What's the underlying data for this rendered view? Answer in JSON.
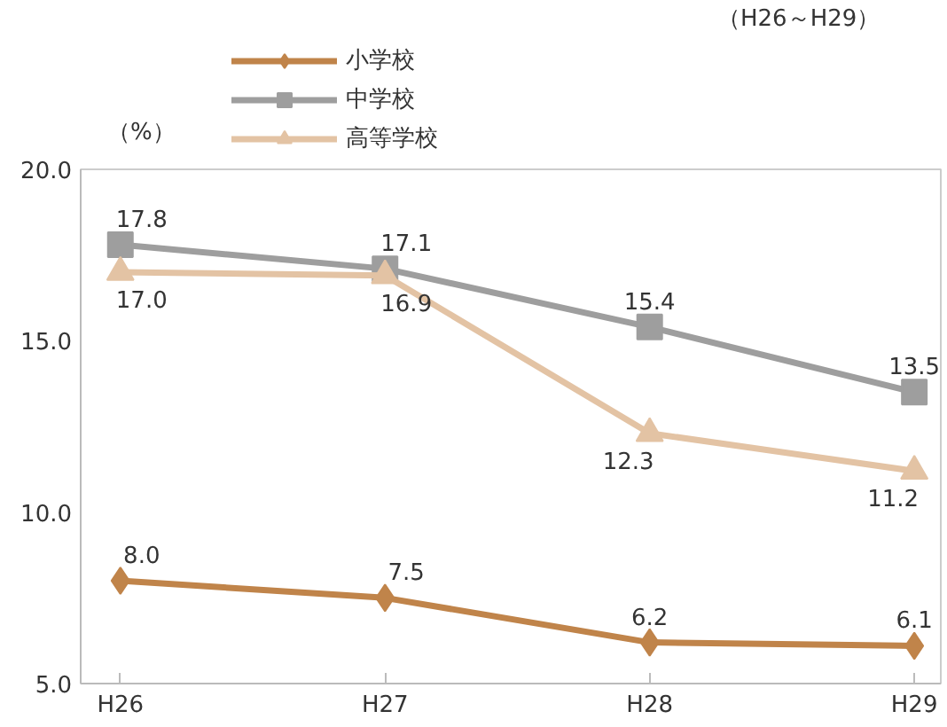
{
  "chart_data": {
    "type": "line",
    "ylabel": "（%）",
    "annotations": [
      "（H26～H29）"
    ],
    "categories": [
      "H26",
      "H27",
      "H28",
      "H29"
    ],
    "ylim": [
      5,
      20
    ],
    "yticks": [
      {
        "value": 5,
        "label": "5.0"
      },
      {
        "value": 10,
        "label": "10.0"
      },
      {
        "value": 15,
        "label": "15.0"
      },
      {
        "value": 20,
        "label": "20.0"
      }
    ],
    "legend": "top left",
    "grid": false,
    "data_labels": true,
    "series": [
      {
        "name": "小学校",
        "color": "#c0844a",
        "marker": "diamond",
        "values": [
          8.0,
          7.5,
          6.2,
          6.1
        ],
        "value_labels": [
          "8.0",
          "7.5",
          "6.2",
          "6.1"
        ]
      },
      {
        "name": "中学校",
        "color": "#9e9e9e",
        "marker": "square",
        "values": [
          17.8,
          17.1,
          15.4,
          13.5
        ],
        "value_labels": [
          "17.8",
          "17.1",
          "15.4",
          "13.5"
        ]
      },
      {
        "name": "高等学校",
        "color": "#e3c3a4",
        "marker": "triangle",
        "values": [
          17.0,
          16.9,
          12.3,
          11.2
        ],
        "value_labels": [
          "17.0",
          "16.9",
          "12.3",
          "11.2"
        ]
      }
    ]
  }
}
